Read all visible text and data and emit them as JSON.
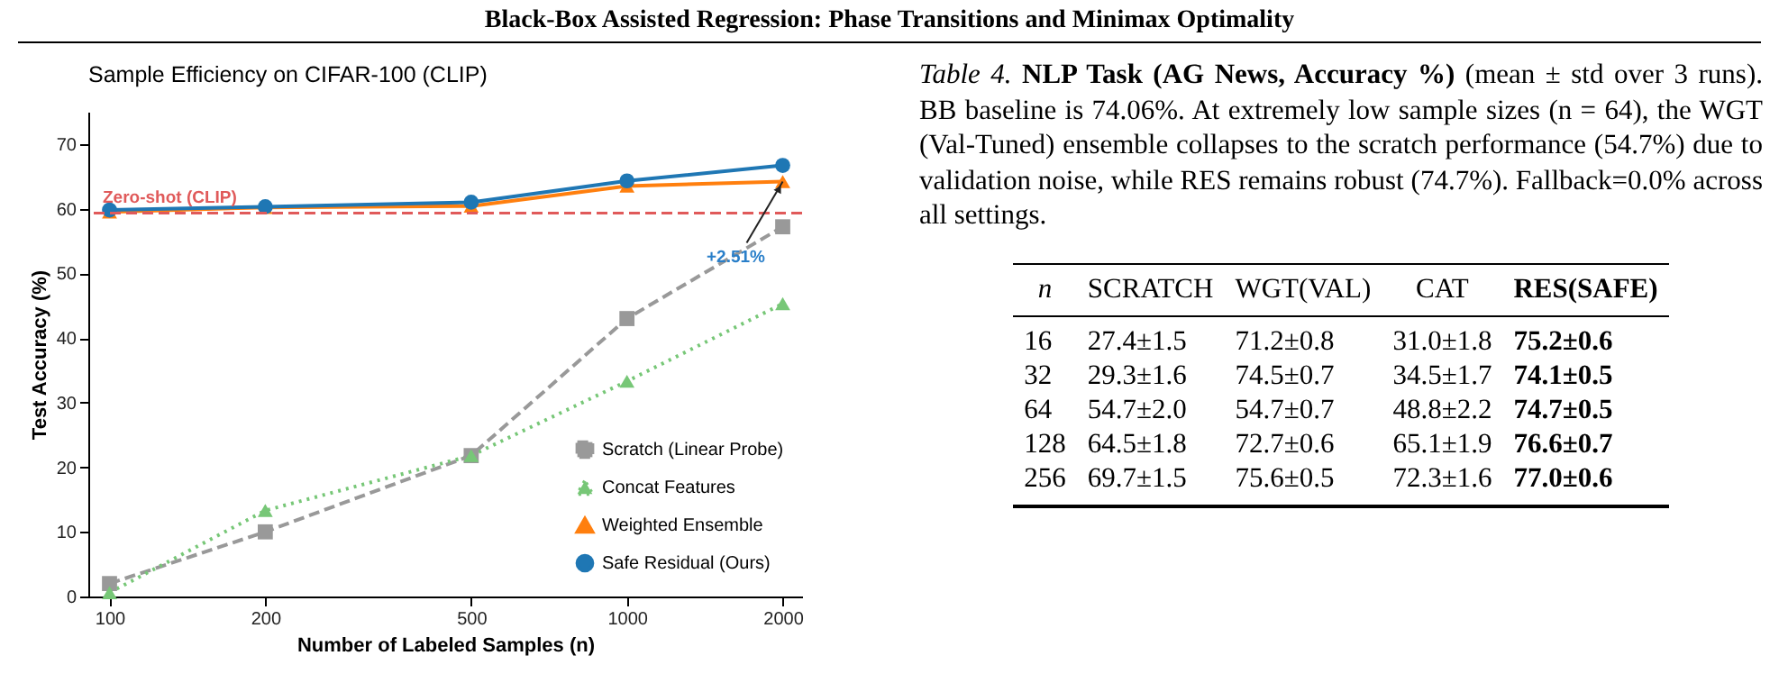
{
  "chart_data": [
    {
      "type": "other",
      "title": "Black-Box Assisted Regression: Phase Transitions and Minimax Optimality"
    },
    {
      "type": "line",
      "title": "Sample Efficiency on CIFAR-100 (CLIP)",
      "xlabel": "Number of Labeled Samples (n)",
      "ylabel": "Test Accuracy (%)",
      "x": [
        100,
        200,
        500,
        1000,
        2000
      ],
      "series": [
        {
          "name": "Scratch (Linear Probe)",
          "color": "#999999",
          "marker": "square",
          "line_style": "dashed",
          "values": [
            2,
            10,
            21.8,
            43,
            57.2
          ]
        },
        {
          "name": "Concat Features",
          "color": "#77c777",
          "marker": "triangle",
          "line_style": "dotted",
          "values": [
            0.6,
            13.3,
            21.8,
            33.3,
            45.3
          ]
        },
        {
          "name": "Weighted Ensemble",
          "color": "#ff7f0e",
          "marker": "triangle",
          "line_style": "solid",
          "values": [
            59.5,
            60.2,
            60.4,
            63.5,
            64.2
          ]
        },
        {
          "name": "Safe Residual (Ours)",
          "color": "#1f77b4",
          "marker": "circle",
          "line_style": "solid",
          "values": [
            59.8,
            60.3,
            61,
            64.3,
            66.7
          ]
        }
      ],
      "log": "x",
      "xlim": [
        91,
        2180
      ],
      "xticks": [
        100,
        200,
        500,
        1000,
        2000
      ],
      "ylim": [
        0,
        75
      ],
      "yticks": [
        0,
        10,
        20,
        30,
        40,
        50,
        60,
        70
      ],
      "legend": "bottom right",
      "ref_lines": [
        {
          "axis": "y",
          "value": 59.3,
          "label": "Zero-shot (CLIP)",
          "color": "#e05a5a",
          "line_style": "dashed"
        }
      ],
      "annotations": [
        {
          "text": "+2.51%",
          "x": 2000,
          "y": 64.2
        }
      ]
    },
    {
      "type": "other",
      "title": "Table 4. NLP Task (AG News, Accuracy %)",
      "subtitle": "(mean ± std over 3 runs). BB baseline is 74.06%. At extremely low sample sizes (n = 64), the WGT (Val-Tuned) ensemble collapses to the scratch performance (54.7%) due to validation noise, while RES remains robust (74.7%). Fallback=0.0% across all settings.",
      "categories": [
        "n",
        "SCRATCH",
        "WGT(VAL)",
        "CAT",
        "RES(SAFE)"
      ],
      "annotations": [
        "16",
        "27.4±1.5",
        "71.2±0.8",
        "31.0±1.8",
        "75.2±0.6",
        "32",
        "29.3±1.6",
        "74.5±0.7",
        "34.5±1.7",
        "74.1±0.5",
        "64",
        "54.7±2.0",
        "54.7±0.7",
        "48.8±2.2",
        "74.7±0.5",
        "128",
        "64.5±1.8",
        "72.7±0.6",
        "65.1±1.9",
        "76.6±0.7",
        "256",
        "69.7±1.5",
        "75.6±0.5",
        "72.3±1.6",
        "77.0±0.6"
      ]
    }
  ]
}
